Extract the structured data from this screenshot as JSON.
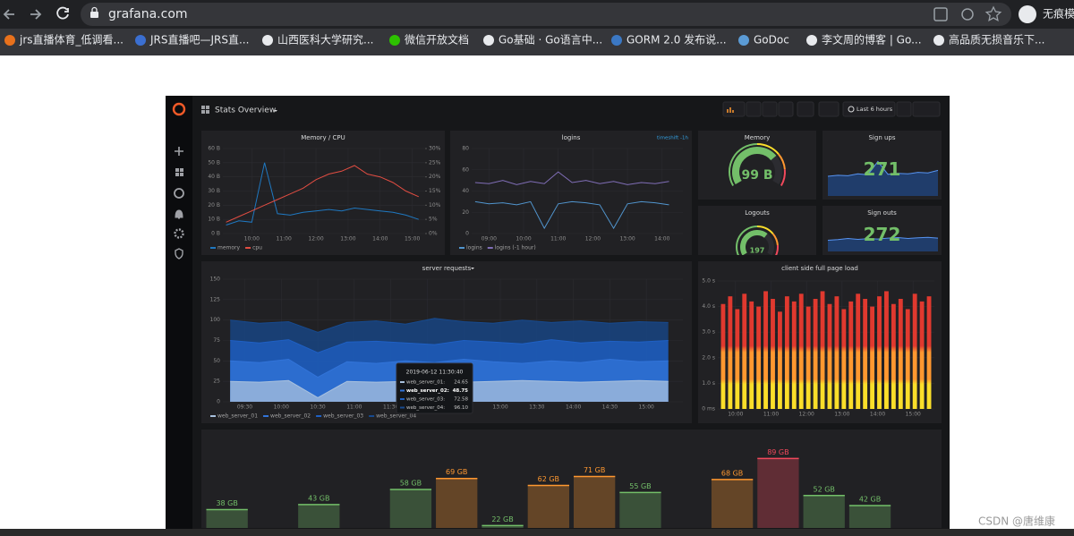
{
  "browser": {
    "url": "grafana.com",
    "profile": "无痕模",
    "bookmarks": [
      "jrs直播体育_低调看...",
      "JRS直播吧—JRS直...",
      "山西医科大学研究...",
      "微信开放文档",
      "Go基础 · Go语言中...",
      "GORM 2.0 发布说...",
      "GoDoc",
      "李文周的博客 | Go...",
      "高品质无损音乐下..."
    ]
  },
  "dashboard": {
    "title": "Stats Overview",
    "time_range": "Last 6 hours"
  },
  "panels": [
    {
      "type": "timeseries",
      "title": "Memory / CPU",
      "x": [
        9.2,
        9.6,
        10,
        10.4,
        10.8,
        11.2,
        11.6,
        12,
        12.4,
        12.8,
        13.2,
        13.6,
        14,
        14.4,
        14.8,
        15.2
      ],
      "xlim": [
        9.1,
        15.4
      ],
      "xticks": [
        {
          "value": 10,
          "label": "10:00"
        },
        {
          "value": 11,
          "label": "11:00"
        },
        {
          "value": 12,
          "label": "12:00"
        },
        {
          "value": 13,
          "label": "13:00"
        },
        {
          "value": 14,
          "label": "14:00"
        },
        {
          "value": 15,
          "label": "15:00"
        }
      ],
      "ylim": [
        0,
        60
      ],
      "yticks": [
        {
          "value": 0,
          "label": "0 B"
        },
        {
          "value": 10,
          "label": "10 B"
        },
        {
          "value": 20,
          "label": "20 B"
        },
        {
          "value": 30,
          "label": "30 B"
        },
        {
          "value": 40,
          "label": "40 B"
        },
        {
          "value": 50,
          "label": "50 B"
        },
        {
          "value": 60,
          "label": "60 B"
        }
      ],
      "y2lim": [
        0,
        30
      ],
      "y2ticks": [
        {
          "value": 0,
          "label": "0%"
        },
        {
          "value": 5,
          "label": "5%"
        },
        {
          "value": 10,
          "label": "10%"
        },
        {
          "value": 15,
          "label": "15%"
        },
        {
          "value": 20,
          "label": "20%"
        },
        {
          "value": 25,
          "label": "25%"
        },
        {
          "value": 30,
          "label": "30%"
        }
      ],
      "series": [
        {
          "name": "memory",
          "color": "#1f78c1",
          "values": [
            6,
            9,
            8,
            50,
            14,
            13,
            15,
            16,
            17,
            16,
            18,
            17,
            16,
            15,
            13,
            10
          ]
        },
        {
          "name": "cpu",
          "color": "#e24d42",
          "axis": "y2",
          "values": [
            4,
            6,
            8,
            10,
            12,
            14,
            16,
            19,
            21,
            22,
            24,
            21,
            20,
            18,
            15,
            13
          ]
        }
      ]
    },
    {
      "type": "timeseries",
      "title": "logins",
      "annotation": "timeshift -1h",
      "x": [
        8.6,
        9,
        9.4,
        9.8,
        10.2,
        10.6,
        11,
        11.4,
        11.8,
        12.2,
        12.6,
        13,
        13.4,
        13.8,
        14.2
      ],
      "xlim": [
        8.5,
        14.6
      ],
      "xticks": [
        {
          "value": 9,
          "label": "09:00"
        },
        {
          "value": 10,
          "label": "10:00"
        },
        {
          "value": 11,
          "label": "11:00"
        },
        {
          "value": 12,
          "label": "12:00"
        },
        {
          "value": 13,
          "label": "13:00"
        },
        {
          "value": 14,
          "label": "14:00"
        }
      ],
      "ylim": [
        0,
        80
      ],
      "yticks": [
        0,
        20,
        40,
        60,
        80
      ],
      "series": [
        {
          "name": "logins",
          "color": "#5195ce",
          "values": [
            30,
            28,
            29,
            27,
            30,
            5,
            28,
            30,
            29,
            27,
            5,
            28,
            30,
            29,
            27
          ]
        },
        {
          "name": "logins (-1 hour)",
          "color": "#806eb7",
          "values": [
            48,
            47,
            50,
            46,
            49,
            47,
            58,
            48,
            50,
            47,
            49,
            46,
            48,
            47,
            49
          ]
        }
      ]
    },
    {
      "type": "gauge",
      "title": "Memory",
      "value": 99,
      "value_label": "99 B",
      "ylim": [
        0,
        140
      ]
    },
    {
      "type": "stat",
      "title": "Sign ups",
      "value": 271,
      "sparkline": [
        40,
        42,
        41,
        45,
        43,
        70,
        44,
        46,
        45,
        48,
        47,
        52
      ],
      "ylim": [
        0,
        100
      ]
    },
    {
      "type": "gauge",
      "title": "Logouts",
      "value": 197,
      "ylim": [
        0,
        300
      ]
    },
    {
      "type": "stat",
      "title": "Sign outs",
      "value": 272,
      "sparkline": [
        38,
        40,
        44,
        41,
        43,
        42,
        45,
        47,
        44,
        46,
        48,
        45
      ],
      "ylim": [
        0,
        100
      ]
    },
    {
      "type": "timeseries",
      "title": "server requests",
      "fill": true,
      "x": [
        9.3,
        9.7,
        10.1,
        10.5,
        10.9,
        11.3,
        11.7,
        12.1,
        12.5,
        12.9,
        13.3,
        13.7,
        14.1,
        14.5,
        14.9,
        15.3
      ],
      "xlim": [
        9.2,
        15.5
      ],
      "xticks": [
        {
          "value": 9.5,
          "label": "09:30"
        },
        {
          "value": 10,
          "label": "10:00"
        },
        {
          "value": 10.5,
          "label": "10:30"
        },
        {
          "value": 11,
          "label": "11:00"
        },
        {
          "value": 11.5,
          "label": "11:30"
        },
        {
          "value": 12,
          "label": "12:00"
        },
        {
          "value": 12.5,
          "label": "12:30"
        },
        {
          "value": 13,
          "label": "13:00"
        },
        {
          "value": 13.5,
          "label": "13:30"
        },
        {
          "value": 14,
          "label": "14:00"
        },
        {
          "value": 14.5,
          "label": "14:30"
        },
        {
          "value": 15,
          "label": "15:00"
        }
      ],
      "ylim": [
        0,
        150
      ],
      "yticks": [
        0,
        25,
        50,
        75,
        100,
        125,
        150
      ],
      "series": [
        {
          "name": "web_server_01",
          "color": "#a9c1de",
          "values": [
            25,
            24,
            26,
            5,
            25,
            24,
            25,
            26,
            24,
            25,
            26,
            25,
            24,
            25,
            26,
            25
          ]
        },
        {
          "name": "web_server_02",
          "color": "#3274d9",
          "values": [
            50,
            48,
            52,
            30,
            49,
            47,
            50,
            48,
            52,
            49,
            47,
            50,
            48,
            52,
            49,
            50
          ]
        },
        {
          "name": "web_server_03",
          "color": "#1f60c4",
          "values": [
            75,
            72,
            76,
            60,
            73,
            74,
            72,
            70,
            75,
            73,
            71,
            76,
            72,
            74,
            73,
            75
          ]
        },
        {
          "name": "web_server_04",
          "color": "#174a8f",
          "values": [
            100,
            96,
            98,
            85,
            97,
            99,
            95,
            102,
            98,
            96,
            100,
            97,
            99,
            96,
            98,
            97
          ]
        }
      ],
      "tooltip": {
        "time": "2019-06-12 11:30:40",
        "rows": [
          [
            "web_server_01:",
            "24.65"
          ],
          [
            "web_server_02:",
            "48.75"
          ],
          [
            "web_server_03:",
            "72.58"
          ],
          [
            "web_server_04:",
            "96.10"
          ]
        ]
      }
    },
    {
      "type": "bars",
      "title": "client side full page load",
      "x": [
        9.65,
        9.85,
        10.05,
        10.25,
        10.45,
        10.65,
        10.85,
        11.05,
        11.25,
        11.45,
        11.65,
        11.85,
        12.05,
        12.25,
        12.45,
        12.65,
        12.85,
        13.05,
        13.25,
        13.45,
        13.65,
        13.85,
        14.05,
        14.25,
        14.45,
        14.65,
        14.85,
        15.05,
        15.25,
        15.45
      ],
      "values": [
        4.1,
        4.4,
        3.9,
        4.5,
        4.2,
        4.0,
        4.6,
        4.3,
        3.8,
        4.4,
        4.2,
        4.5,
        4.0,
        4.3,
        4.6,
        4.1,
        4.4,
        3.9,
        4.2,
        4.5,
        4.3,
        4.0,
        4.4,
        4.6,
        4.1,
        4.3,
        3.9,
        4.5,
        4.2,
        4.4
      ],
      "xlim": [
        9.5,
        15.6
      ],
      "xticks": [
        {
          "value": 10,
          "label": "10:00"
        },
        {
          "value": 11,
          "label": "11:00"
        },
        {
          "value": 12,
          "label": "12:00"
        },
        {
          "value": 13,
          "label": "13:00"
        },
        {
          "value": 14,
          "label": "14:00"
        },
        {
          "value": 15,
          "label": "15:00"
        }
      ],
      "ylim": [
        0,
        5
      ],
      "yticks": [
        {
          "value": 0,
          "label": "0 ms"
        },
        {
          "value": 1,
          "label": "1.0 s"
        },
        {
          "value": 2,
          "label": "2.0 s"
        },
        {
          "value": 3,
          "label": "3.0 s"
        },
        {
          "value": 4,
          "label": "4.0 s"
        },
        {
          "value": 5,
          "label": "5.0 s"
        }
      ]
    },
    {
      "type": "bargauge",
      "values": [
        38,
        null,
        43,
        null,
        58,
        69,
        22,
        62,
        71,
        55,
        null,
        68,
        89,
        52,
        42,
        null
      ],
      "value_labels": [
        "38 GB",
        null,
        "43 GB",
        null,
        "58 GB",
        "69 GB",
        "22 GB",
        "62 GB",
        "71 GB",
        "55 GB",
        null,
        "68 GB",
        "89 GB",
        "52 GB",
        "42 GB",
        null
      ],
      "ylim": [
        0,
        100
      ],
      "thresholds": [
        60,
        80
      ],
      "colors": [
        "#73bf69",
        "#ff9830",
        "#f2495c"
      ]
    }
  ],
  "watermark": "CSDN @唐维康"
}
